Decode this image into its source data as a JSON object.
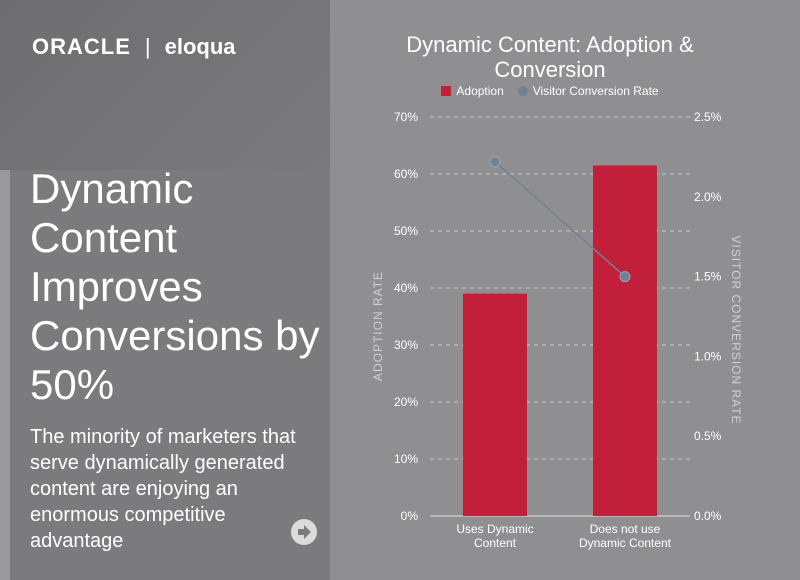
{
  "brand": {
    "oracle": "ORACLE",
    "separator": "|",
    "eloqua": "eloqua"
  },
  "headline": "Dynamic Content Improves Conversions by 50%",
  "subtext": "The minority of marketers that serve dynamically generated content are enjoying an enormous competitive advantage",
  "nav": {
    "next_icon": "arrow-right-icon"
  },
  "colors": {
    "adoption": "#c21f3a",
    "conversion": "#6f8196",
    "grid": "#c9c9c9"
  },
  "chart_data": {
    "type": "bar",
    "title": "Dynamic Content: Adoption & Conversion",
    "categories": [
      "Uses Dynamic Content",
      "Does not use Dynamic Content"
    ],
    "series": [
      {
        "name": "Adoption",
        "type": "bar",
        "axis": "left",
        "values": [
          39,
          61.5
        ]
      },
      {
        "name": "Visitor Conversion Rate",
        "type": "line",
        "axis": "right",
        "values": [
          2.22,
          1.5
        ]
      }
    ],
    "ylabel": "ADOPTION RATE",
    "y2label": "VISITOR CONVERSION RATE",
    "ylim": [
      0,
      70
    ],
    "y2lim": [
      0,
      2.5
    ],
    "yticks": [
      "0%",
      "10%",
      "20%",
      "30%",
      "40%",
      "50%",
      "60%",
      "70%"
    ],
    "y2ticks": [
      "0.0%",
      "0.5%",
      "1.0%",
      "1.5%",
      "2.0%",
      "2.5%"
    ],
    "grid": true,
    "legend": "top"
  }
}
